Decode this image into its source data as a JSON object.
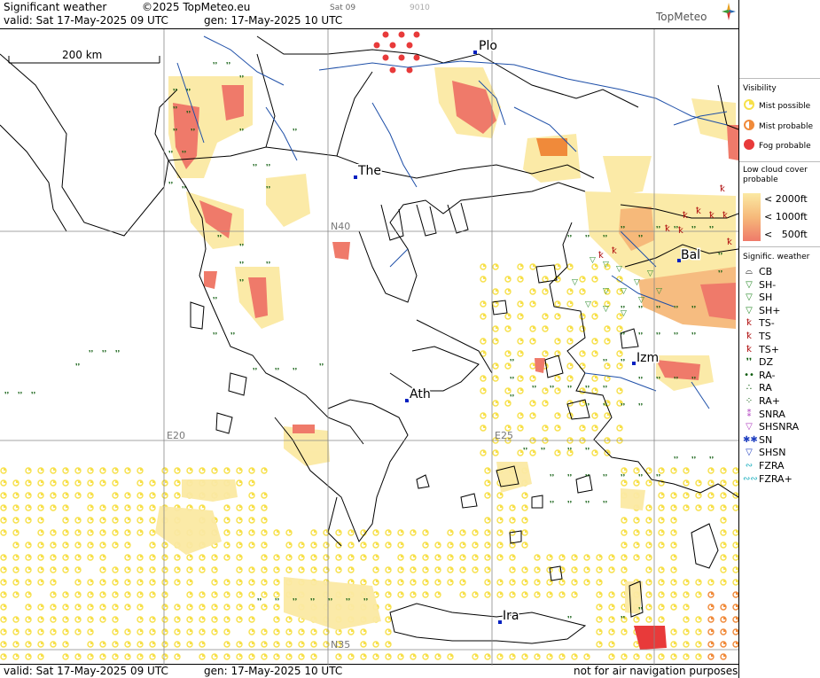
{
  "header": {
    "title": "Significant weather",
    "copyright": "©2025 TopMeteo.eu",
    "frame_label": "Sat 09",
    "frame_code": "9010",
    "valid": "valid:  Sat  17-May-2025  09 UTC",
    "generated": "gen: 17-May-2025 10 UTC",
    "logo": "TopMeteo"
  },
  "scale_bar": {
    "label": "200 km"
  },
  "cities": [
    {
      "label": "Plo"
    },
    {
      "label": "The"
    },
    {
      "label": "Bal"
    },
    {
      "label": "Izm"
    },
    {
      "label": "Ath"
    },
    {
      "label": "Ira"
    }
  ],
  "grid_labels": {
    "n40": "N40",
    "n35": "N35",
    "e20": "E20",
    "e25": "E25"
  },
  "footer": {
    "valid": "valid:  Sat  17-May-2025  09 UTC",
    "generated": "gen: 17-May-2025 10 UTC",
    "disclaimer": "not for air navigation purposes"
  },
  "legend": {
    "visibility_title": "Visibility",
    "visibility_items": [
      {
        "label": "Mist possible",
        "color": "#f7e04a"
      },
      {
        "label": "Mist probable",
        "color": "#f08a3a"
      },
      {
        "label": "Fog probable",
        "color": "#e83a3a"
      }
    ],
    "cloud_title": "Low cloud cover probable",
    "cloud_items": [
      {
        "label": "< 2000ft",
        "color": "#fbe9a3"
      },
      {
        "label": "< 1000ft",
        "color": "#f6b97a"
      },
      {
        "label": "<   500ft",
        "color": "#ef7a6a"
      }
    ],
    "weather_title": "Signific. weather",
    "weather_items": [
      {
        "label": "CB",
        "icon": "cb-icon",
        "glyph": "⌓",
        "color": "#000"
      },
      {
        "label": "SH-",
        "icon": "shower-light-icon",
        "glyph": "▽",
        "color": "#2a8a2a"
      },
      {
        "label": "SH",
        "icon": "shower-icon",
        "glyph": "▽",
        "color": "#2a8a2a"
      },
      {
        "label": "SH+",
        "icon": "shower-heavy-icon",
        "glyph": "▽",
        "color": "#2a8a2a"
      },
      {
        "label": "TS-",
        "icon": "thunderstorm-light-icon",
        "glyph": "ꝁ",
        "color": "#b01010"
      },
      {
        "label": "TS",
        "icon": "thunderstorm-icon",
        "glyph": "ꝁ",
        "color": "#b01010"
      },
      {
        "label": "TS+",
        "icon": "thunderstorm-heavy-icon",
        "glyph": "ꝁ",
        "color": "#b01010"
      },
      {
        "label": "DZ",
        "icon": "drizzle-icon",
        "glyph": "❜❜",
        "color": "#0a5a0a"
      },
      {
        "label": "RA-",
        "icon": "rain-light-icon",
        "glyph": "••",
        "color": "#0a5a0a"
      },
      {
        "label": "RA",
        "icon": "rain-icon",
        "glyph": "∴",
        "color": "#0a5a0a"
      },
      {
        "label": "RA+",
        "icon": "rain-heavy-icon",
        "glyph": "⁘",
        "color": "#0a5a0a"
      },
      {
        "label": "SNRA",
        "icon": "snow-rain-icon",
        "glyph": "⁑",
        "color": "#b040c0"
      },
      {
        "label": "SHSNRA",
        "icon": "snow-rain-shower-icon",
        "glyph": "▽",
        "color": "#b040c0"
      },
      {
        "label": "SN",
        "icon": "snow-icon",
        "glyph": "✱✱",
        "color": "#2040c0"
      },
      {
        "label": "SHSN",
        "icon": "snow-shower-icon",
        "glyph": "▽",
        "color": "#2040c0"
      },
      {
        "label": "FZRA",
        "icon": "freezing-rain-icon",
        "glyph": "∾",
        "color": "#20b0c0"
      },
      {
        "label": "FZRA+",
        "icon": "freezing-rain-heavy-icon",
        "glyph": "∾∾",
        "color": "#20b0c0"
      }
    ]
  },
  "colors": {
    "coast": "#000000",
    "rivers": "#1e4fa8",
    "grid": "#888888",
    "mist_possible": "#f7e04a",
    "mist_probable": "#f08a3a",
    "fog_probable": "#e83a3a"
  }
}
